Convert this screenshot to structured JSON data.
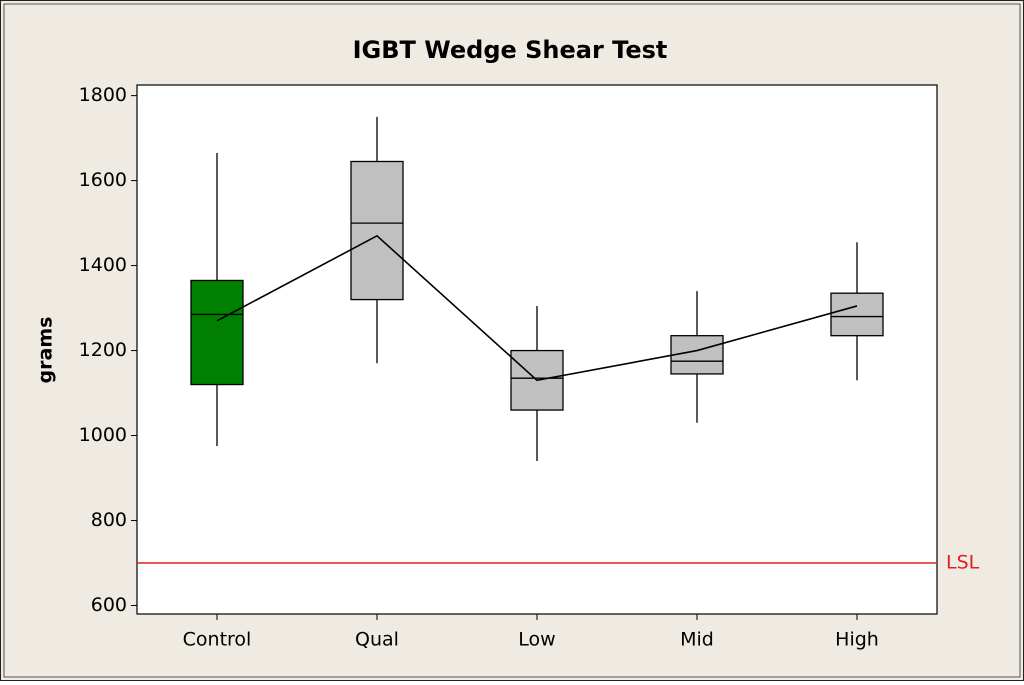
{
  "chart_data": {
    "type": "boxplot",
    "title": "IGBT Wedge Shear Test",
    "ylabel": "grams",
    "categories": [
      "Control",
      "Qual",
      "Low",
      "Mid",
      "High"
    ],
    "whisker_low": [
      975,
      1170,
      940,
      1030,
      1130
    ],
    "q1": [
      1120,
      1320,
      1060,
      1145,
      1235
    ],
    "median": [
      1285,
      1500,
      1135,
      1175,
      1280
    ],
    "q3": [
      1365,
      1645,
      1200,
      1235,
      1335
    ],
    "whisker_high": [
      1665,
      1750,
      1305,
      1340,
      1455
    ],
    "means": [
      1270,
      1470,
      1130,
      1200,
      1305
    ],
    "box_colors": [
      "#008000",
      "#c0c0c0",
      "#c0c0c0",
      "#c0c0c0",
      "#c0c0c0"
    ],
    "reference_line": {
      "value": 700,
      "label": "LSL",
      "color": "#e02020"
    },
    "ylim": [
      580,
      1825
    ],
    "yticks": [
      600,
      800,
      1000,
      1200,
      1400,
      1600,
      1800
    ]
  }
}
